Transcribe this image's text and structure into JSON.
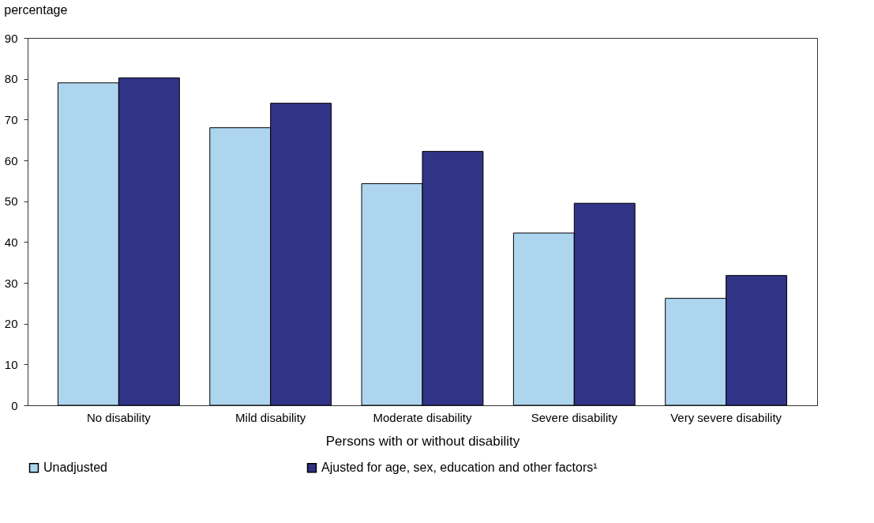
{
  "chart_data": {
    "type": "bar",
    "ylabel": "percentage",
    "xlabel": "Persons with or without disability",
    "categories": [
      "No disability",
      "Mild disability",
      "Moderate disability",
      "Severe disability",
      "Very severe disability"
    ],
    "series": [
      {
        "name": "Unadjusted",
        "color": "#add5ee",
        "values": [
          79.0,
          68.0,
          54.3,
          42.2,
          26.2
        ]
      },
      {
        "name": "Ajusted for age, sex, education and other factors¹",
        "color": "#303386",
        "values": [
          80.2,
          74.0,
          62.2,
          49.5,
          31.8
        ]
      }
    ],
    "ylim": [
      0,
      90
    ],
    "yticks": [
      0,
      10,
      20,
      30,
      40,
      50,
      60,
      70,
      80,
      90
    ],
    "grid": false,
    "legend": "bottom"
  }
}
